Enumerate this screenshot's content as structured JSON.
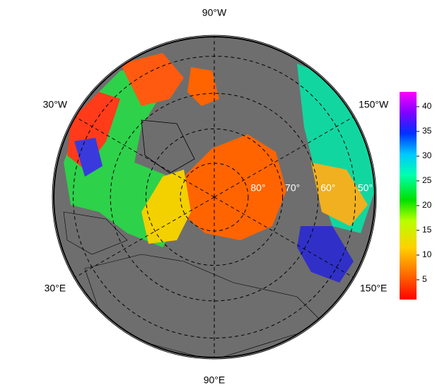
{
  "map": {
    "latlim": [
      45,
      90
    ],
    "meridians": [
      {
        "value": -90,
        "label": "90°W"
      },
      {
        "value": -30,
        "label": "30°W"
      },
      {
        "value": -150,
        "label": "150°W"
      },
      {
        "value": 30,
        "label": "30°E"
      },
      {
        "value": 150,
        "label": "150°E"
      },
      {
        "value": 90,
        "label": "90°E"
      }
    ],
    "parallels": [
      {
        "value": 80,
        "label": "80°"
      },
      {
        "value": 70,
        "label": "70°"
      },
      {
        "value": 60,
        "label": "60°"
      },
      {
        "value": 50,
        "label": "50°"
      }
    ]
  },
  "colorbar": {
    "lim": [
      1,
      43
    ],
    "ticks": [
      5,
      10,
      15,
      20,
      25,
      30,
      35,
      40
    ]
  }
}
